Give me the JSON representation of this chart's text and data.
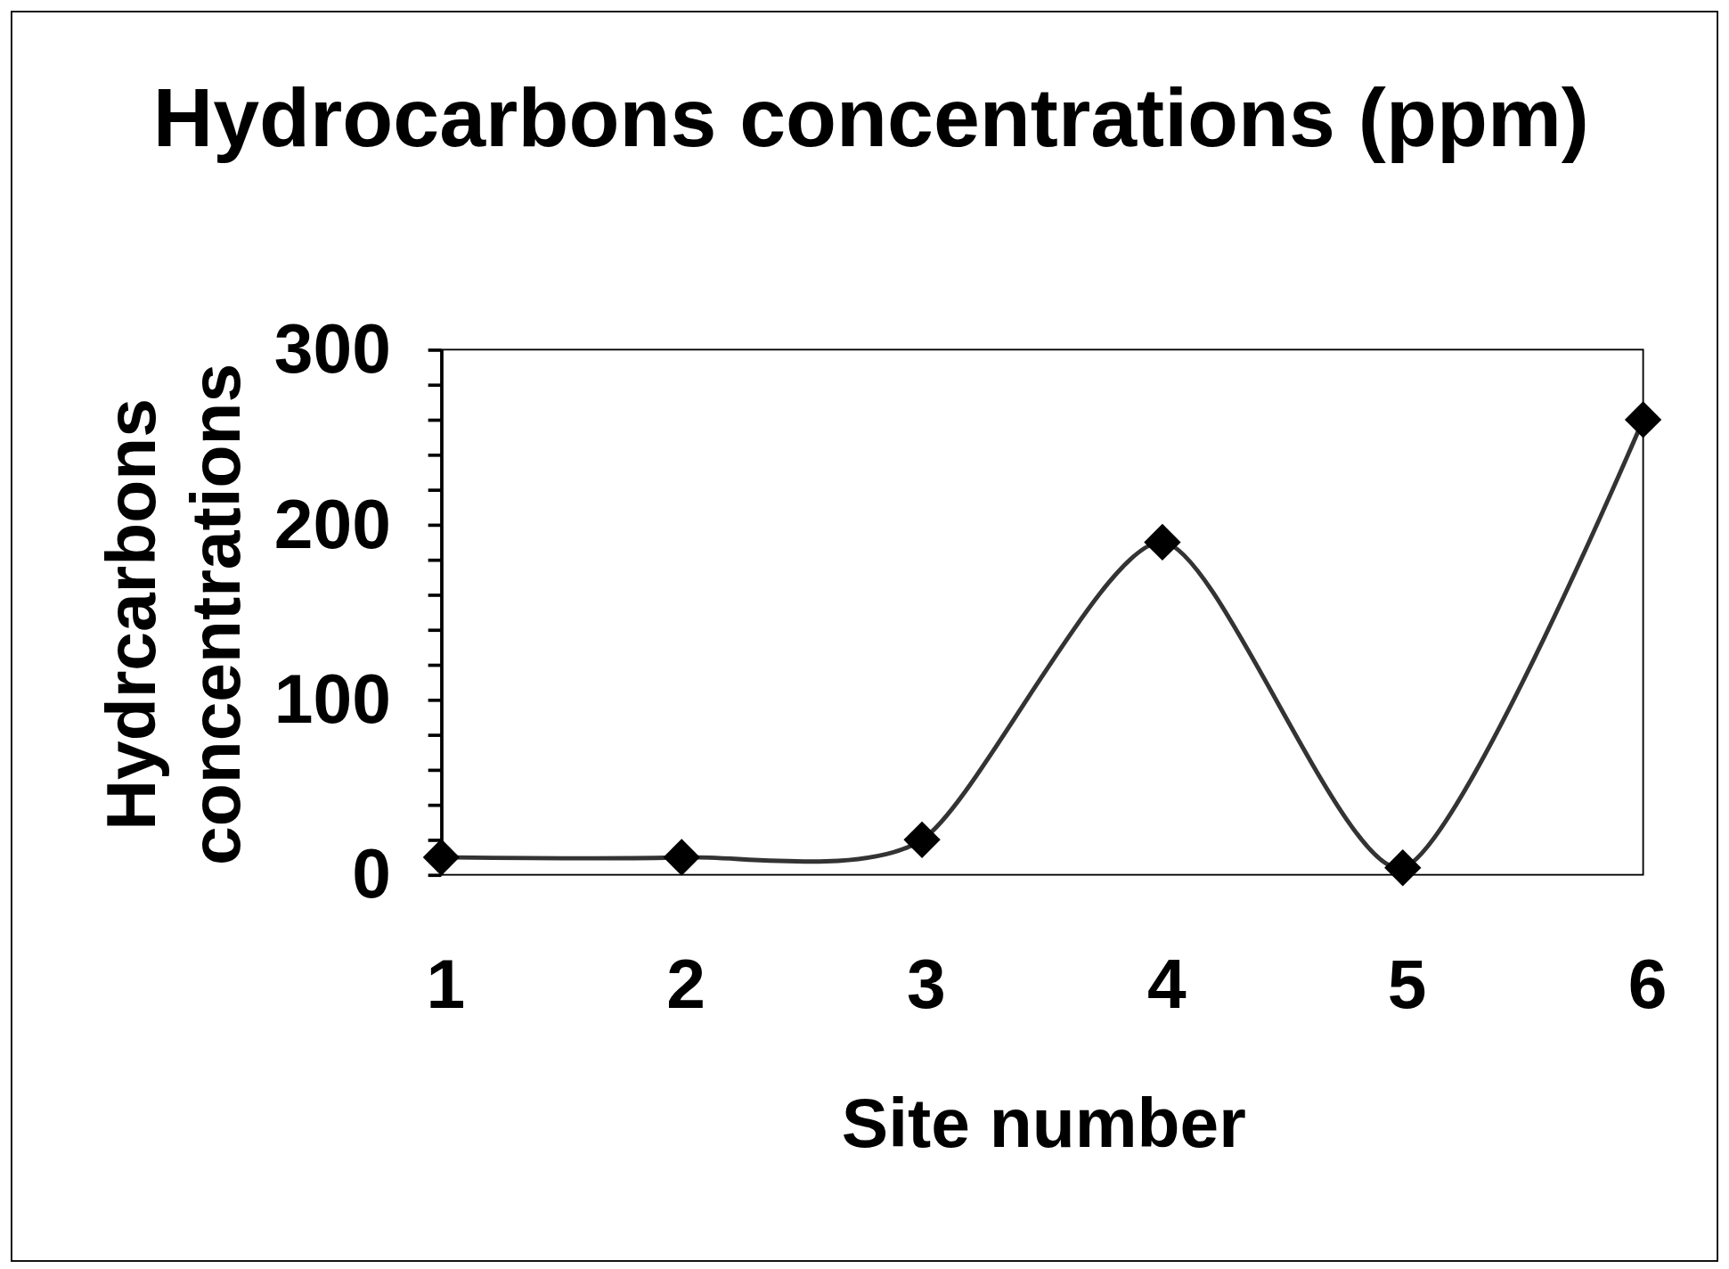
{
  "chart_data": {
    "type": "line",
    "title": "Hydrocarbons concentrations (ppm)",
    "xlabel": "Site number",
    "ylabel": "Hydrcarbons concentrations",
    "categories": [
      "1",
      "2",
      "3",
      "4",
      "5",
      "6"
    ],
    "series": [
      {
        "color": "#000000",
        "values": [
          10,
          10,
          20,
          190,
          4,
          260
        ]
      }
    ],
    "ylim": [
      0,
      300
    ],
    "yticks": [
      0,
      {
        "value": 20,
        "label": null
      },
      {
        "value": 40,
        "label": null
      },
      {
        "value": 60,
        "label": null
      },
      {
        "value": 80,
        "label": null
      },
      100,
      {
        "value": 120,
        "label": null
      },
      {
        "value": 140,
        "label": null
      },
      {
        "value": 160,
        "label": null
      },
      {
        "value": 180,
        "label": null
      },
      200,
      {
        "value": 220,
        "label": null
      },
      {
        "value": 240,
        "label": null
      },
      {
        "value": 260,
        "label": null
      },
      {
        "value": 280,
        "label": null
      },
      300
    ],
    "grid": false,
    "marker": "diamond",
    "line_style": "solid"
  }
}
